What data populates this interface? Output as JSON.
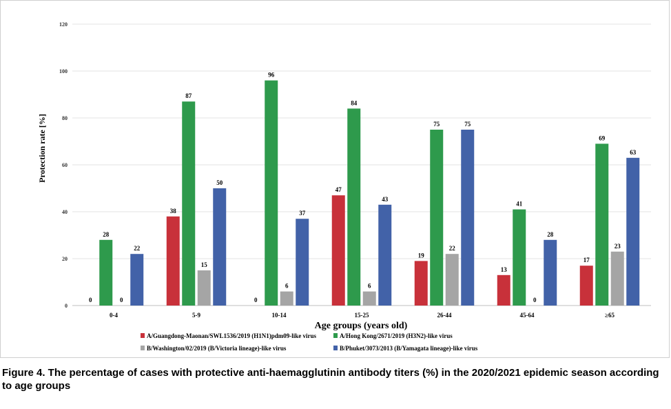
{
  "chart_data": {
    "type": "bar",
    "title": "",
    "xlabel": "Age groups (years old)",
    "ylabel": "Protection rate [%]",
    "ylim": [
      0,
      120
    ],
    "yticks": [
      0,
      20,
      40,
      60,
      80,
      100,
      120
    ],
    "grid": true,
    "legend_position": "bottom",
    "categories": [
      "0-4",
      "5-9",
      "10-14",
      "15-25",
      "26-44",
      "45-64",
      "≥65"
    ],
    "series": [
      {
        "name": "A/Guangdong-Maonan/SWL1536/2019 (H1N1)pdm09-like virus",
        "color": "#c8313a",
        "values": [
          0,
          38,
          0,
          47,
          19,
          13,
          17
        ]
      },
      {
        "name": "A/Hong Kong/2671/2019 (H3N2)-like virus",
        "color": "#2e9a4c",
        "values": [
          28,
          87,
          96,
          84,
          75,
          41,
          69
        ]
      },
      {
        "name": "B/Washington/02/2019 (B/Victoria lineage)-like virus",
        "color": "#a5a5a5",
        "values": [
          0,
          15,
          6,
          6,
          22,
          0,
          23
        ]
      },
      {
        "name": "B/Phuket/3073/2013 (B/Yamagata lineage)-like virus",
        "color": "#4262a8",
        "values": [
          22,
          50,
          37,
          43,
          75,
          28,
          63
        ]
      }
    ]
  },
  "caption": "Figure 4. The percentage of cases with protective anti-haemagglutinin antibody titers (%) in the 2020/2021 epidemic season according to age groups"
}
